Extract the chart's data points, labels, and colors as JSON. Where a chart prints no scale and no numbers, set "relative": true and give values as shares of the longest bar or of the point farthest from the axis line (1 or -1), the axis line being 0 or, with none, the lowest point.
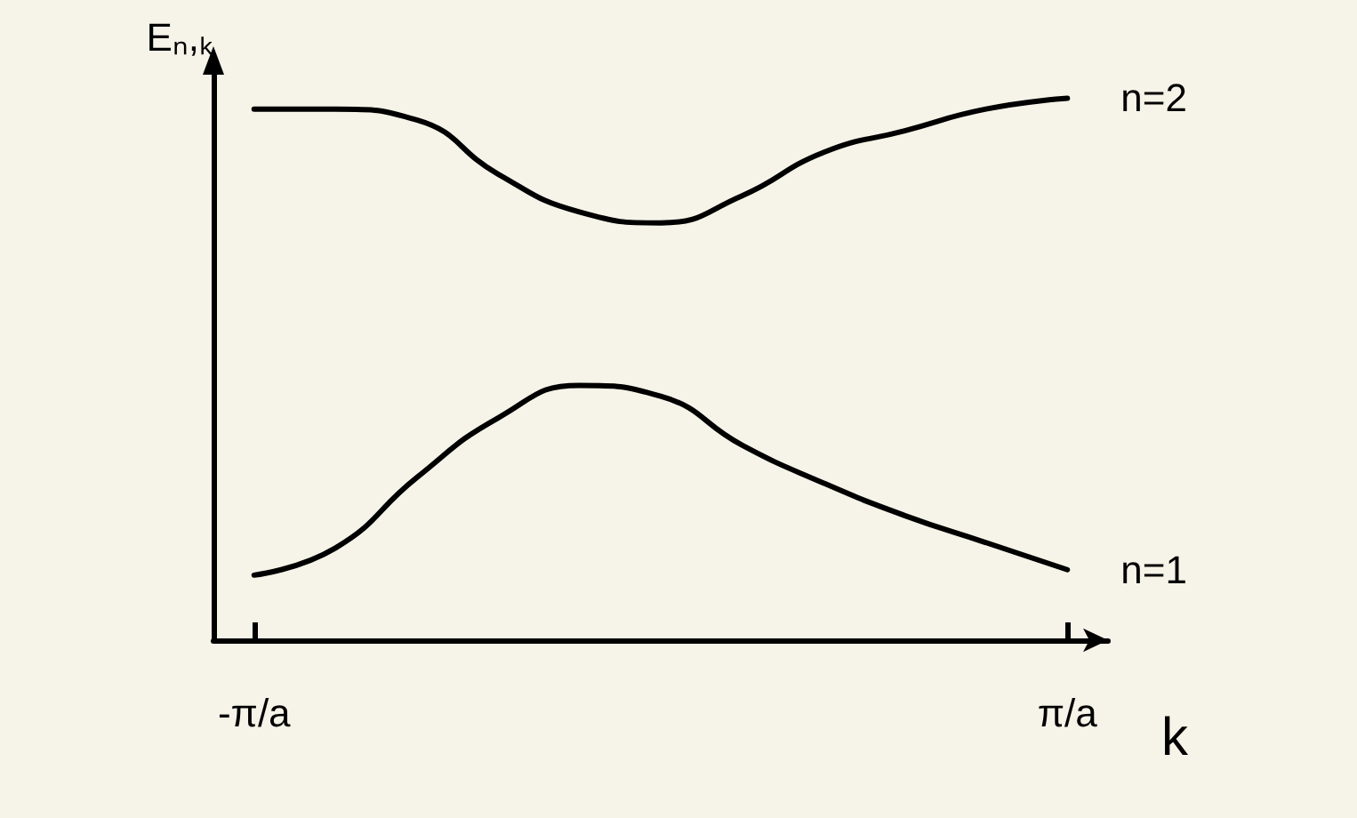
{
  "chart_data": {
    "type": "line",
    "relative": true,
    "ylabel": "Eₙ,ₖ",
    "xlabel": "k",
    "categories": [
      "-π/a",
      null,
      null,
      null,
      null,
      null,
      null,
      null,
      null,
      null,
      "π/a"
    ],
    "tick_labels": "x",
    "marker": "none",
    "line_style": "solid",
    "grid": false,
    "legend": false,
    "series": [
      {
        "name": "n=2",
        "color": "#000000",
        "values": [
          0.98,
          0.98,
          0.96,
          0.86,
          0.79,
          0.77,
          0.82,
          0.9,
          0.94,
          0.98,
          1.0
        ]
      },
      {
        "name": "n=1",
        "color": "#000000",
        "values": [
          0.12,
          0.17,
          0.3,
          0.41,
          0.47,
          0.45,
          0.36,
          0.29,
          0.23,
          0.18,
          0.13
        ]
      }
    ]
  }
}
